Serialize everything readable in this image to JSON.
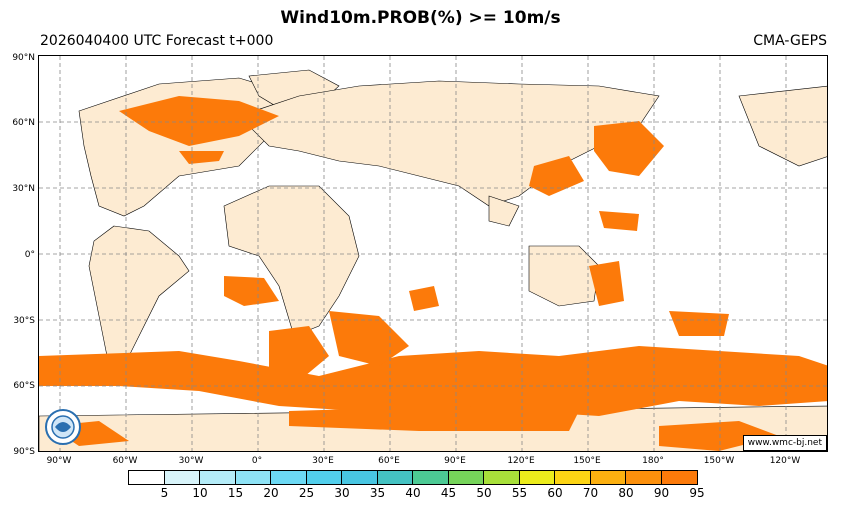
{
  "title": "Wind10m.PROB(%) >= 10m/s",
  "subtitle_left": "2026040400 UTC Forecast t+000",
  "subtitle_right": "CMA-GEPS",
  "credit": "www.wmc-bj.net",
  "logo_icon": "cma-logo-icon",
  "lat_labels": [
    "90°N",
    "60°N",
    "30°N",
    "0°",
    "30°S",
    "60°S",
    "90°S"
  ],
  "lon_labels": [
    "90°W",
    "60°W",
    "30°W",
    "0°",
    "30°E",
    "60°E",
    "90°E",
    "120°E",
    "150°E",
    "180°",
    "150°W",
    "120°W"
  ],
  "colorbar": {
    "colors": [
      "#ffffff",
      "#d8f4fa",
      "#b4ecf8",
      "#8ee3f6",
      "#6cd9f4",
      "#52cfec",
      "#48c6e2",
      "#44c2c2",
      "#4cca94",
      "#76d45a",
      "#a8e03a",
      "#ecec1c",
      "#fcd414",
      "#fcb010",
      "#fc900c",
      "#fc7a0a"
    ],
    "labels": [
      "5",
      "10",
      "15",
      "20",
      "25",
      "30",
      "35",
      "40",
      "45",
      "50",
      "55",
      "60",
      "70",
      "80",
      "90",
      "95"
    ]
  },
  "map_colors": {
    "land": "#fdebd2",
    "wind_area": "#fc7a0a",
    "grid": "#888888"
  }
}
